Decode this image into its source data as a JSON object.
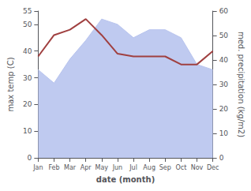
{
  "chart_data": {
    "type": "line",
    "categories": [
      "Jan",
      "Feb",
      "Mar",
      "Apr",
      "May",
      "Jun",
      "Jul",
      "Aug",
      "Sep",
      "Oct",
      "Nov",
      "Dec"
    ],
    "series": [
      {
        "type": "area",
        "color": "#b8c4ee",
        "values": [
          33,
          28,
          37,
          44,
          52,
          50,
          45,
          48,
          48,
          45,
          35,
          33
        ]
      },
      {
        "type": "line",
        "color": "#a04040",
        "values": [
          38,
          46,
          48,
          52,
          46,
          39,
          38,
          38,
          38,
          35,
          35,
          40
        ]
      }
    ],
    "xlabel": "date (month)",
    "ylabel": "max temp (C)",
    "y2label": "med. precipitation (kg/m2)",
    "ylim": [
      0,
      55
    ],
    "yticks": [
      0,
      10,
      20,
      30,
      40,
      50
    ],
    "y2lim": [
      0,
      60
    ],
    "y2ticks": [
      0,
      10,
      20,
      30,
      40,
      50,
      60
    ],
    "grid": false
  }
}
